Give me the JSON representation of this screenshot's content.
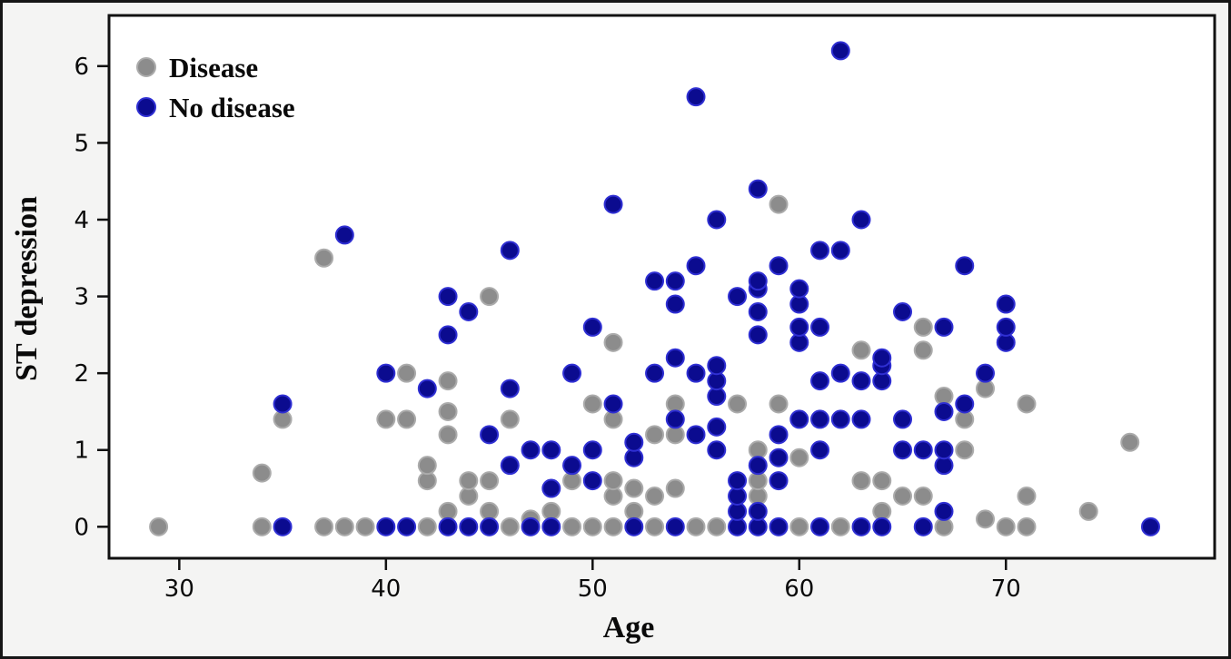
{
  "chart_data": {
    "type": "scatter",
    "title": "",
    "xlabel": "Age",
    "ylabel": "ST depression",
    "xlim": [
      26.6,
      80.1
    ],
    "ylim": [
      -0.41,
      6.66
    ],
    "xticks": [
      30,
      40,
      50,
      60,
      70
    ],
    "yticks": [
      0,
      1,
      2,
      3,
      4,
      5,
      6
    ],
    "grid": "off",
    "legend_position": "upper-left",
    "plot_bg_color": "#ffffff",
    "canvas_bg_color": "#f4f4f3",
    "frame_color": "#111111",
    "series": [
      {
        "name": "Disease",
        "color": "#8c8c8c",
        "edge_color": "#ababab",
        "points": [
          [
            29,
            0
          ],
          [
            34,
            0
          ],
          [
            34,
            0.7
          ],
          [
            35,
            1.4
          ],
          [
            37,
            0
          ],
          [
            37,
            3.5
          ],
          [
            38,
            0
          ],
          [
            39,
            0
          ],
          [
            40,
            1.4
          ],
          [
            41,
            1.4
          ],
          [
            41,
            2.0
          ],
          [
            42,
            0
          ],
          [
            42,
            0.6
          ],
          [
            42,
            0.8
          ],
          [
            43,
            0.2
          ],
          [
            43,
            1.2
          ],
          [
            43,
            1.5
          ],
          [
            43,
            1.9
          ],
          [
            44,
            0.4
          ],
          [
            44,
            0.6
          ],
          [
            45,
            0.2
          ],
          [
            45,
            0.6
          ],
          [
            45,
            3.0
          ],
          [
            46,
            0
          ],
          [
            46,
            1.4
          ],
          [
            47,
            0.1
          ],
          [
            48,
            0.2
          ],
          [
            49,
            0
          ],
          [
            49,
            0.6
          ],
          [
            50,
            0
          ],
          [
            50,
            1.6
          ],
          [
            51,
            0
          ],
          [
            51,
            0.4
          ],
          [
            51,
            0.6
          ],
          [
            51,
            1.4
          ],
          [
            51,
            2.4
          ],
          [
            52,
            0.2
          ],
          [
            52,
            0.5
          ],
          [
            53,
            0
          ],
          [
            53,
            0.4
          ],
          [
            53,
            1.2
          ],
          [
            54,
            0.5
          ],
          [
            54,
            1.2
          ],
          [
            54,
            1.6
          ],
          [
            55,
            0
          ],
          [
            56,
            0
          ],
          [
            57,
            1.6
          ],
          [
            58,
            0.4
          ],
          [
            58,
            0.6
          ],
          [
            58,
            1.0
          ],
          [
            59,
            1.6
          ],
          [
            59,
            4.2
          ],
          [
            60,
            0
          ],
          [
            60,
            0.9
          ],
          [
            62,
            0
          ],
          [
            63,
            0.6
          ],
          [
            63,
            2.3
          ],
          [
            64,
            0.2
          ],
          [
            64,
            0.6
          ],
          [
            65,
            0.4
          ],
          [
            66,
            0.4
          ],
          [
            66,
            2.3
          ],
          [
            66,
            2.6
          ],
          [
            67,
            0
          ],
          [
            67,
            1.7
          ],
          [
            68,
            1.0
          ],
          [
            68,
            1.4
          ],
          [
            69,
            0.1
          ],
          [
            69,
            1.8
          ],
          [
            70,
            0
          ],
          [
            71,
            0
          ],
          [
            71,
            0.4
          ],
          [
            71,
            1.6
          ],
          [
            74,
            0.2
          ],
          [
            76,
            1.1
          ]
        ]
      },
      {
        "name": "No disease",
        "color": "#0b0b8f",
        "edge_color": "#2f2fd3",
        "points": [
          [
            35,
            0
          ],
          [
            35,
            1.6
          ],
          [
            38,
            3.8
          ],
          [
            40,
            0
          ],
          [
            40,
            2.0
          ],
          [
            41,
            0
          ],
          [
            42,
            1.8
          ],
          [
            43,
            0
          ],
          [
            43,
            2.5
          ],
          [
            43,
            3.0
          ],
          [
            44,
            0
          ],
          [
            44,
            2.8
          ],
          [
            45,
            0
          ],
          [
            45,
            1.2
          ],
          [
            46,
            0.8
          ],
          [
            46,
            1.8
          ],
          [
            46,
            3.6
          ],
          [
            47,
            0
          ],
          [
            47,
            1.0
          ],
          [
            48,
            0
          ],
          [
            48,
            0.5
          ],
          [
            48,
            1.0
          ],
          [
            49,
            0.8
          ],
          [
            49,
            2.0
          ],
          [
            50,
            0.6
          ],
          [
            50,
            1.0
          ],
          [
            50,
            2.6
          ],
          [
            51,
            1.6
          ],
          [
            51,
            4.2
          ],
          [
            52,
            0
          ],
          [
            52,
            0.9
          ],
          [
            52,
            1.1
          ],
          [
            53,
            2.0
          ],
          [
            53,
            3.2
          ],
          [
            54,
            0
          ],
          [
            54,
            1.4
          ],
          [
            54,
            2.2
          ],
          [
            54,
            2.9
          ],
          [
            54,
            3.2
          ],
          [
            55,
            1.2
          ],
          [
            55,
            2.0
          ],
          [
            55,
            3.4
          ],
          [
            55,
            5.6
          ],
          [
            56,
            1.0
          ],
          [
            56,
            1.3
          ],
          [
            56,
            1.7
          ],
          [
            56,
            1.9
          ],
          [
            56,
            2.1
          ],
          [
            56,
            4.0
          ],
          [
            57,
            0
          ],
          [
            57,
            0.2
          ],
          [
            57,
            0.4
          ],
          [
            57,
            0.6
          ],
          [
            57,
            3.0
          ],
          [
            58,
            0
          ],
          [
            58,
            0.2
          ],
          [
            58,
            0.8
          ],
          [
            58,
            2.5
          ],
          [
            58,
            2.8
          ],
          [
            58,
            3.1
          ],
          [
            58,
            3.2
          ],
          [
            58,
            4.4
          ],
          [
            59,
            0
          ],
          [
            59,
            0.6
          ],
          [
            59,
            0.9
          ],
          [
            59,
            1.2
          ],
          [
            59,
            3.4
          ],
          [
            60,
            1.4
          ],
          [
            60,
            2.4
          ],
          [
            60,
            2.6
          ],
          [
            60,
            2.9
          ],
          [
            60,
            3.1
          ],
          [
            61,
            0
          ],
          [
            61,
            1.0
          ],
          [
            61,
            1.4
          ],
          [
            61,
            1.9
          ],
          [
            61,
            2.6
          ],
          [
            61,
            3.6
          ],
          [
            62,
            1.4
          ],
          [
            62,
            2.0
          ],
          [
            62,
            3.6
          ],
          [
            62,
            6.2
          ],
          [
            63,
            0
          ],
          [
            63,
            1.4
          ],
          [
            63,
            1.9
          ],
          [
            63,
            4.0
          ],
          [
            64,
            0
          ],
          [
            64,
            1.9
          ],
          [
            64,
            2.1
          ],
          [
            64,
            2.2
          ],
          [
            65,
            1.0
          ],
          [
            65,
            1.4
          ],
          [
            65,
            2.8
          ],
          [
            66,
            0
          ],
          [
            66,
            1.0
          ],
          [
            67,
            0.2
          ],
          [
            67,
            0.8
          ],
          [
            67,
            1.0
          ],
          [
            67,
            1.5
          ],
          [
            67,
            2.6
          ],
          [
            68,
            1.6
          ],
          [
            68,
            3.4
          ],
          [
            69,
            2.0
          ],
          [
            70,
            2.4
          ],
          [
            70,
            2.6
          ],
          [
            70,
            2.9
          ],
          [
            77,
            0
          ]
        ]
      }
    ]
  }
}
